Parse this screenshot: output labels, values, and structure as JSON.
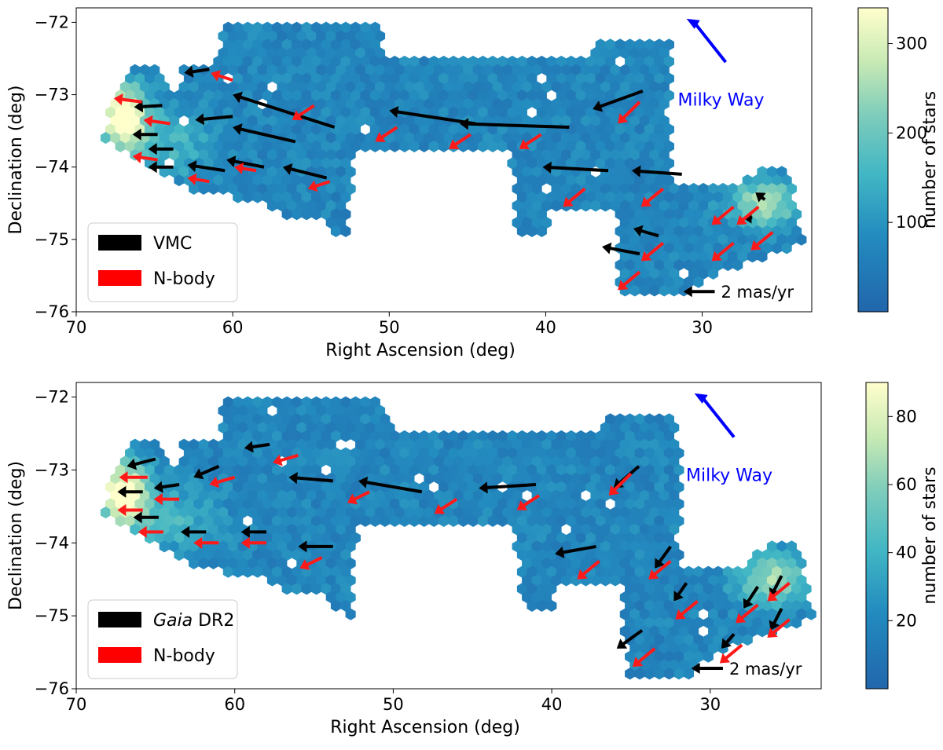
{
  "chart_data": [
    {
      "type": "heatmap",
      "panel": "top",
      "xlabel": "Right Ascension (deg)",
      "ylabel": "Declination (deg)",
      "xlim": [
        70,
        23
      ],
      "ylim": [
        -76,
        -71.8
      ],
      "xticks": [
        70,
        60,
        50,
        40,
        30
      ],
      "yticks": [
        -72,
        -73,
        -74,
        -75,
        -76
      ],
      "xtick_labels": [
        "70",
        "60",
        "50",
        "40",
        "30"
      ],
      "ytick_labels": [
        "−72",
        "−73",
        "−74",
        "−75",
        "−76"
      ],
      "colorbar": {
        "label": "number of stars",
        "min": 0,
        "max": 340,
        "ticks": [
          100,
          200,
          300
        ]
      },
      "legend": {
        "position": "lower-left",
        "entries": [
          {
            "label": "VMC",
            "color": "#000000"
          },
          {
            "label": "N-body",
            "color": "#ff0000"
          }
        ]
      },
      "milky_way": {
        "label": "Milky Way",
        "color": "#0000ff",
        "from": [
          28.5,
          -72.55
        ],
        "to": [
          31,
          -71.95
        ]
      },
      "scale_arrow": {
        "label": "2 mas/yr",
        "from": [
          29.2,
          -75.72
        ],
        "to": [
          31.2,
          -75.72
        ]
      },
      "observed_vectors": [
        [
          64.5,
          -73.15,
          -1.8,
          -0.02
        ],
        [
          64.8,
          -73.55,
          -1.6,
          0.0
        ],
        [
          61.5,
          -72.65,
          -1.6,
          -0.05
        ],
        [
          60.0,
          -73.3,
          -2.4,
          -0.05
        ],
        [
          56.0,
          -73.65,
          -4.0,
          0.2
        ],
        [
          53.5,
          -73.45,
          -6.5,
          0.45
        ],
        [
          44.5,
          -73.4,
          -5.5,
          0.18
        ],
        [
          38.5,
          -73.45,
          -7.0,
          0.05
        ],
        [
          33.8,
          -72.95,
          -3.2,
          -0.25
        ],
        [
          63.8,
          -73.75,
          -1.6,
          0.0
        ],
        [
          63.8,
          -74.0,
          -1.6,
          0.0
        ],
        [
          58.0,
          -74.0,
          -2.4,
          0.1
        ],
        [
          54.0,
          -74.15,
          -2.8,
          0.15
        ],
        [
          60.5,
          -74.05,
          -2.4,
          0.08
        ],
        [
          36.0,
          -74.05,
          -4.2,
          0.05
        ],
        [
          31.3,
          -74.1,
          -3.2,
          0.05
        ],
        [
          32.8,
          -74.95,
          -1.6,
          0.1
        ],
        [
          34.0,
          -75.2,
          -2.4,
          0.1
        ],
        [
          26.0,
          -74.45,
          -0.6,
          0.1
        ],
        [
          26.8,
          -74.7,
          -0.6,
          0.0
        ]
      ],
      "model_vectors": [
        [
          65.8,
          -73.1,
          -1.8,
          0.05
        ],
        [
          64.0,
          -73.4,
          -1.7,
          0.05
        ],
        [
          60.0,
          -72.8,
          -1.4,
          0.1
        ],
        [
          54.8,
          -73.15,
          -1.4,
          -0.2
        ],
        [
          49.5,
          -73.45,
          -1.4,
          -0.2
        ],
        [
          44.8,
          -73.55,
          -1.4,
          -0.2
        ],
        [
          40.3,
          -73.55,
          -1.4,
          -0.2
        ],
        [
          34.0,
          -73.1,
          -1.4,
          -0.3
        ],
        [
          64.8,
          -73.9,
          -1.6,
          0.05
        ],
        [
          58.5,
          -74.05,
          -1.4,
          0.05
        ],
        [
          53.8,
          -74.2,
          -1.4,
          -0.1
        ],
        [
          61.5,
          -74.2,
          -1.4,
          0.05
        ],
        [
          37.5,
          -74.3,
          -1.4,
          -0.25
        ],
        [
          32.5,
          -74.3,
          -1.4,
          -0.25
        ],
        [
          32.5,
          -75.05,
          -1.4,
          -0.25
        ],
        [
          34.0,
          -75.45,
          -1.4,
          -0.25
        ],
        [
          28.0,
          -75.05,
          -1.4,
          -0.25
        ],
        [
          26.4,
          -74.55,
          -1.4,
          -0.25
        ],
        [
          25.5,
          -74.9,
          -1.4,
          -0.25
        ],
        [
          28.0,
          -74.55,
          -1.4,
          -0.25
        ]
      ]
    },
    {
      "type": "heatmap",
      "panel": "bottom",
      "xlabel": "Right Ascension (deg)",
      "ylabel": "Declination (deg)",
      "xlim": [
        70,
        23
      ],
      "ylim": [
        -76,
        -71.8
      ],
      "xticks": [
        70,
        60,
        50,
        40,
        30
      ],
      "yticks": [
        -72,
        -73,
        -74,
        -75,
        -76
      ],
      "xtick_labels": [
        "70",
        "60",
        "50",
        "40",
        "30"
      ],
      "ytick_labels": [
        "−72",
        "−73",
        "−74",
        "−75",
        "−76"
      ],
      "colorbar": {
        "label": "number of stars",
        "min": 0,
        "max": 90,
        "ticks": [
          20,
          40,
          60,
          80
        ]
      },
      "legend": {
        "position": "lower-left",
        "entries": [
          {
            "label": "Gaia DR2",
            "italic_part": "Gaia",
            "rest": " DR2",
            "color": "#000000"
          },
          {
            "label": "N-body",
            "color": "#ff0000"
          }
        ]
      },
      "milky_way": {
        "label": "Milky Way",
        "color": "#0000ff",
        "from": [
          28.5,
          -72.55
        ],
        "to": [
          31,
          -71.95
        ]
      },
      "scale_arrow": {
        "label": "2 mas/yr",
        "from": [
          29.2,
          -75.72
        ],
        "to": [
          31.2,
          -75.72
        ]
      },
      "observed_vectors": [
        [
          65.0,
          -72.85,
          -1.8,
          -0.1
        ],
        [
          63.5,
          -73.2,
          -1.6,
          -0.05
        ],
        [
          61.0,
          -72.95,
          -1.6,
          -0.15
        ],
        [
          57.8,
          -72.65,
          -1.6,
          -0.05
        ],
        [
          53.8,
          -73.15,
          -2.8,
          0.05
        ],
        [
          48.2,
          -73.3,
          -4.0,
          0.15
        ],
        [
          41.0,
          -73.2,
          -3.6,
          -0.05
        ],
        [
          34.5,
          -72.95,
          -1.6,
          -0.3
        ],
        [
          65.8,
          -73.3,
          -1.6,
          0.0
        ],
        [
          64.8,
          -73.65,
          -1.6,
          0.0
        ],
        [
          61.8,
          -73.85,
          -1.6,
          0.0
        ],
        [
          58.0,
          -73.85,
          -1.6,
          0.0
        ],
        [
          53.8,
          -74.05,
          -2.2,
          0.0
        ],
        [
          37.2,
          -74.05,
          -2.6,
          -0.1
        ],
        [
          32.5,
          -74.05,
          -1.0,
          -0.3
        ],
        [
          31.5,
          -74.55,
          -0.8,
          -0.25
        ],
        [
          34.3,
          -75.2,
          -1.6,
          -0.25
        ],
        [
          28.5,
          -75.25,
          -0.8,
          -0.2
        ],
        [
          27.0,
          -74.6,
          -0.9,
          -0.3
        ],
        [
          25.5,
          -74.45,
          -0.7,
          -0.3
        ],
        [
          25.5,
          -74.9,
          -0.7,
          -0.3
        ]
      ],
      "model_vectors": [
        [
          65.5,
          -73.1,
          -1.8,
          0.0
        ],
        [
          63.5,
          -73.4,
          -1.6,
          0.0
        ],
        [
          60.0,
          -73.1,
          -1.6,
          -0.1
        ],
        [
          56.0,
          -72.8,
          -1.6,
          -0.1
        ],
        [
          51.5,
          -73.3,
          -1.4,
          -0.15
        ],
        [
          46.0,
          -73.4,
          -1.4,
          -0.2
        ],
        [
          40.8,
          -73.35,
          -1.4,
          -0.2
        ],
        [
          35.0,
          -73.05,
          -1.4,
          -0.3
        ],
        [
          65.8,
          -73.55,
          -1.6,
          0.0
        ],
        [
          64.5,
          -73.85,
          -1.6,
          0.0
        ],
        [
          61.0,
          -74.0,
          -1.6,
          0.0
        ],
        [
          58.0,
          -74.0,
          -1.6,
          0.0
        ],
        [
          54.5,
          -74.2,
          -1.4,
          -0.15
        ],
        [
          37.0,
          -74.25,
          -1.4,
          -0.25
        ],
        [
          32.5,
          -74.25,
          -1.4,
          -0.25
        ],
        [
          30.8,
          -74.8,
          -1.4,
          -0.25
        ],
        [
          33.5,
          -75.45,
          -1.4,
          -0.25
        ],
        [
          28.0,
          -75.4,
          -1.4,
          -0.25
        ],
        [
          27.0,
          -74.85,
          -1.4,
          -0.25
        ],
        [
          25.0,
          -74.55,
          -1.4,
          -0.25
        ],
        [
          25.0,
          -75.05,
          -1.4,
          -0.25
        ]
      ]
    }
  ]
}
